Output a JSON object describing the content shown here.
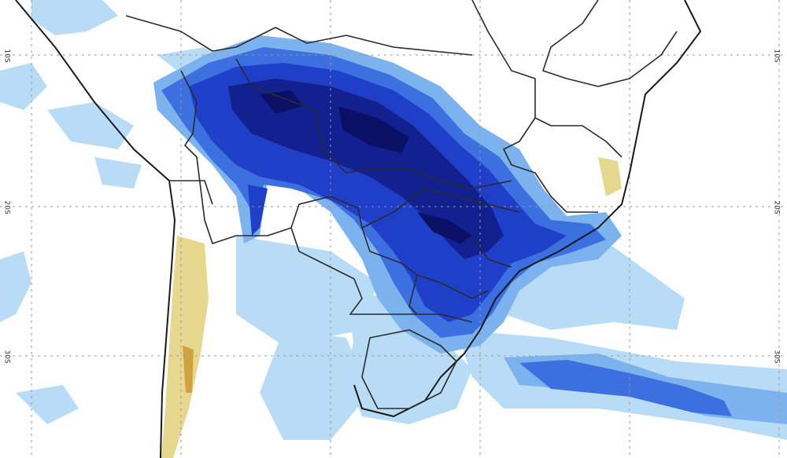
{
  "map": {
    "gridlines": true,
    "latitude_labels": [
      "10S",
      "20S",
      "30S"
    ],
    "colors": {
      "rain_light": "#b9dcf6",
      "rain_moderate": "#7cb2ee",
      "rain_heavy": "#3c6fe0",
      "rain_very_heavy": "#1f3fc8",
      "rain_extreme": "#13208f",
      "rain_max": "#0b1066",
      "dry_yellow": "#e6d88f",
      "dry_orange": "#d0a240",
      "border": "#2b2b2b"
    }
  }
}
